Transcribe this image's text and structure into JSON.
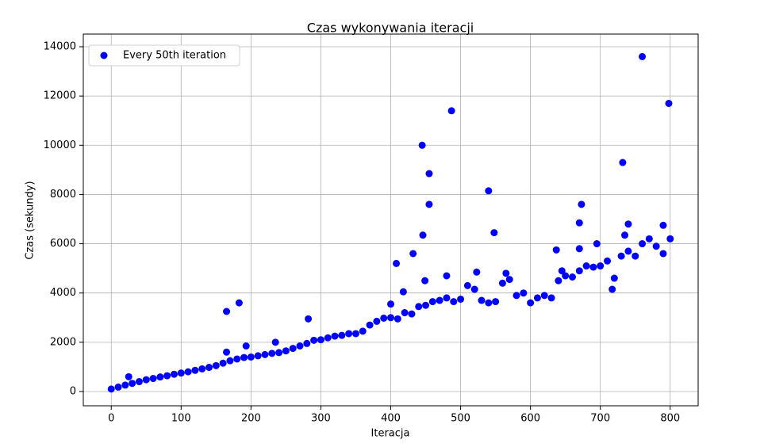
{
  "chart_data": {
    "type": "scatter",
    "title": "Czas wykonywania iteracji",
    "xlabel": "Iteracja",
    "ylabel": "Czas (sekundy)",
    "xlim": [
      -40,
      840
    ],
    "ylim": [
      -580,
      14515
    ],
    "xticks": [
      0,
      100,
      200,
      300,
      400,
      500,
      600,
      700,
      800
    ],
    "yticks": [
      0,
      2000,
      4000,
      6000,
      8000,
      10000,
      12000,
      14000
    ],
    "grid": true,
    "legend": "upper left",
    "series": [
      {
        "name": "Every 50th iteration",
        "color": "#0000ff",
        "x": [
          0,
          10,
          20,
          30,
          40,
          50,
          60,
          70,
          80,
          90,
          100,
          110,
          120,
          130,
          140,
          150,
          160,
          170,
          180,
          190,
          200,
          210,
          220,
          230,
          240,
          250,
          260,
          270,
          280,
          290,
          300,
          310,
          320,
          330,
          340,
          350,
          360,
          370,
          380,
          390,
          400,
          410,
          420,
          430,
          440,
          450,
          460,
          470,
          480,
          490,
          500,
          510,
          520,
          530,
          540,
          550,
          560,
          570,
          580,
          590,
          600,
          610,
          620,
          630,
          640,
          650,
          660,
          670,
          680,
          690,
          700,
          710,
          720,
          730,
          740,
          750,
          760,
          770,
          780,
          790,
          800,
          25,
          165,
          165,
          183,
          193,
          235,
          282,
          400,
          408,
          418,
          432,
          445,
          446,
          449,
          455,
          455,
          480,
          487,
          523,
          540,
          548,
          565,
          637,
          645,
          670,
          670,
          673,
          695,
          732,
          740,
          760,
          790,
          798,
          717,
          735
        ],
        "values": [
          100,
          180,
          260,
          330,
          400,
          480,
          530,
          590,
          640,
          700,
          750,
          800,
          860,
          920,
          980,
          1050,
          1150,
          1250,
          1320,
          1380,
          1400,
          1450,
          1500,
          1550,
          1580,
          1650,
          1750,
          1850,
          1950,
          2080,
          2100,
          2180,
          2250,
          2280,
          2350,
          2350,
          2450,
          2700,
          2850,
          2980,
          3000,
          2950,
          3200,
          3150,
          3450,
          3500,
          3650,
          3700,
          3800,
          3650,
          3750,
          4300,
          4150,
          3700,
          3600,
          3650,
          4400,
          4550,
          3900,
          4000,
          3600,
          3800,
          3900,
          3800,
          4500,
          4700,
          4650,
          4900,
          5100,
          5050,
          5100,
          5300,
          4600,
          5500,
          5700,
          5500,
          6000,
          6200,
          5900,
          5600,
          6200,
          600,
          3250,
          1600,
          3600,
          1850,
          2000,
          2950,
          3550,
          5200,
          4050,
          5600,
          10000,
          6350,
          4500,
          8850,
          7600,
          4700,
          11400,
          4850,
          8150,
          6450,
          4800,
          5750,
          4900,
          5800,
          6850,
          7600,
          6000,
          9300,
          6800,
          13600,
          6750,
          11700,
          4150,
          6350
        ]
      }
    ]
  }
}
